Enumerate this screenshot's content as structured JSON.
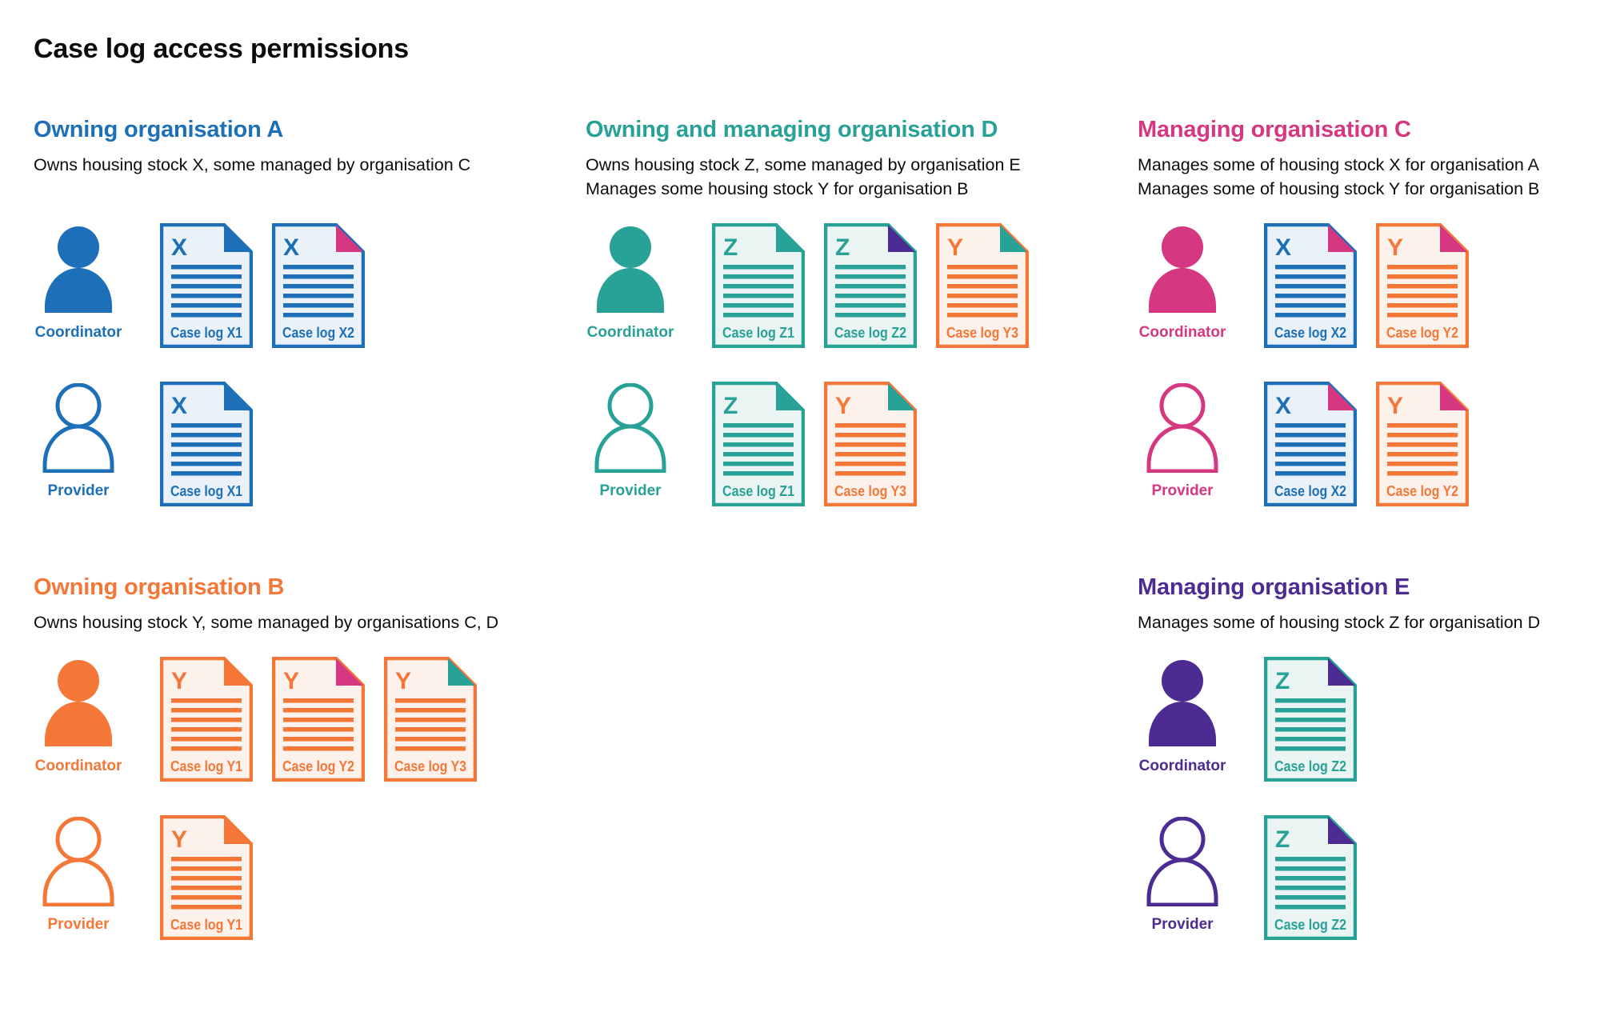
{
  "title": "Case log access permissions",
  "palette": {
    "blue": "#1d70b8",
    "teal": "#28a197",
    "orange": "#f47738",
    "pink": "#d53880",
    "purple": "#4c2c92",
    "blue_tint": "#eaf1f8",
    "teal_tint": "#e9f4f3",
    "orange_tint": "#fdf2eb",
    "text": "#0b0c0c"
  },
  "sections": [
    {
      "heading": "Owning organisation A",
      "color": "blue",
      "description": [
        "Owns housing stock X, some managed by organisation C"
      ],
      "grid": {
        "row": 1,
        "col": 1
      },
      "rows": [
        {
          "role": "Coordinator",
          "docs": [
            {
              "letter": "X",
              "label": "Case log X1",
              "doc_color": "blue",
              "fold_color": "blue"
            },
            {
              "letter": "X",
              "label": "Case log X2",
              "doc_color": "blue",
              "fold_color": "pink"
            }
          ]
        },
        {
          "role": "Provider",
          "docs": [
            {
              "letter": "X",
              "label": "Case log X1",
              "doc_color": "blue",
              "fold_color": "blue"
            }
          ]
        }
      ]
    },
    {
      "heading": "Owning and managing organisation D",
      "color": "teal",
      "description": [
        "Owns housing stock Z, some managed by organisation E",
        "Manages some housing stock Y for organisation B"
      ],
      "grid": {
        "row": 1,
        "col": 2
      },
      "rows": [
        {
          "role": "Coordinator",
          "docs": [
            {
              "letter": "Z",
              "label": "Case log Z1",
              "doc_color": "teal",
              "fold_color": "teal"
            },
            {
              "letter": "Z",
              "label": "Case log Z2",
              "doc_color": "teal",
              "fold_color": "purple"
            },
            {
              "letter": "Y",
              "label": "Case log Y3",
              "doc_color": "orange",
              "fold_color": "teal"
            }
          ]
        },
        {
          "role": "Provider",
          "docs": [
            {
              "letter": "Z",
              "label": "Case log Z1",
              "doc_color": "teal",
              "fold_color": "teal"
            },
            {
              "letter": "Y",
              "label": "Case log Y3",
              "doc_color": "orange",
              "fold_color": "teal"
            }
          ]
        }
      ]
    },
    {
      "heading": "Managing organisation C",
      "color": "pink",
      "description": [
        "Manages some of housing stock X for organisation A",
        "Manages some of housing stock Y for organisation B"
      ],
      "grid": {
        "row": 1,
        "col": 3
      },
      "rows": [
        {
          "role": "Coordinator",
          "docs": [
            {
              "letter": "X",
              "label": "Case log X2",
              "doc_color": "blue",
              "fold_color": "pink"
            },
            {
              "letter": "Y",
              "label": "Case log Y2",
              "doc_color": "orange",
              "fold_color": "pink"
            }
          ]
        },
        {
          "role": "Provider",
          "docs": [
            {
              "letter": "X",
              "label": "Case log X2",
              "doc_color": "blue",
              "fold_color": "pink"
            },
            {
              "letter": "Y",
              "label": "Case log Y2",
              "doc_color": "orange",
              "fold_color": "pink"
            }
          ]
        }
      ]
    },
    {
      "heading": "Owning organisation B",
      "color": "orange",
      "description": [
        "Owns housing stock Y, some managed by organisations C, D"
      ],
      "grid": {
        "row": 2,
        "col": 1
      },
      "rows": [
        {
          "role": "Coordinator",
          "docs": [
            {
              "letter": "Y",
              "label": "Case log Y1",
              "doc_color": "orange",
              "fold_color": "orange"
            },
            {
              "letter": "Y",
              "label": "Case log Y2",
              "doc_color": "orange",
              "fold_color": "pink"
            },
            {
              "letter": "Y",
              "label": "Case log Y3",
              "doc_color": "orange",
              "fold_color": "teal"
            }
          ]
        },
        {
          "role": "Provider",
          "docs": [
            {
              "letter": "Y",
              "label": "Case log Y1",
              "doc_color": "orange",
              "fold_color": "orange"
            }
          ]
        }
      ]
    },
    {
      "heading": "Managing organisation E",
      "color": "purple",
      "description": [
        "Manages some of housing stock Z for organisation D"
      ],
      "grid": {
        "row": 2,
        "col": 3
      },
      "rows": [
        {
          "role": "Coordinator",
          "docs": [
            {
              "letter": "Z",
              "label": "Case log Z2",
              "doc_color": "teal",
              "fold_color": "purple"
            }
          ]
        },
        {
          "role": "Provider",
          "docs": [
            {
              "letter": "Z",
              "label": "Case log Z2",
              "doc_color": "teal",
              "fold_color": "purple"
            }
          ]
        }
      ]
    }
  ]
}
